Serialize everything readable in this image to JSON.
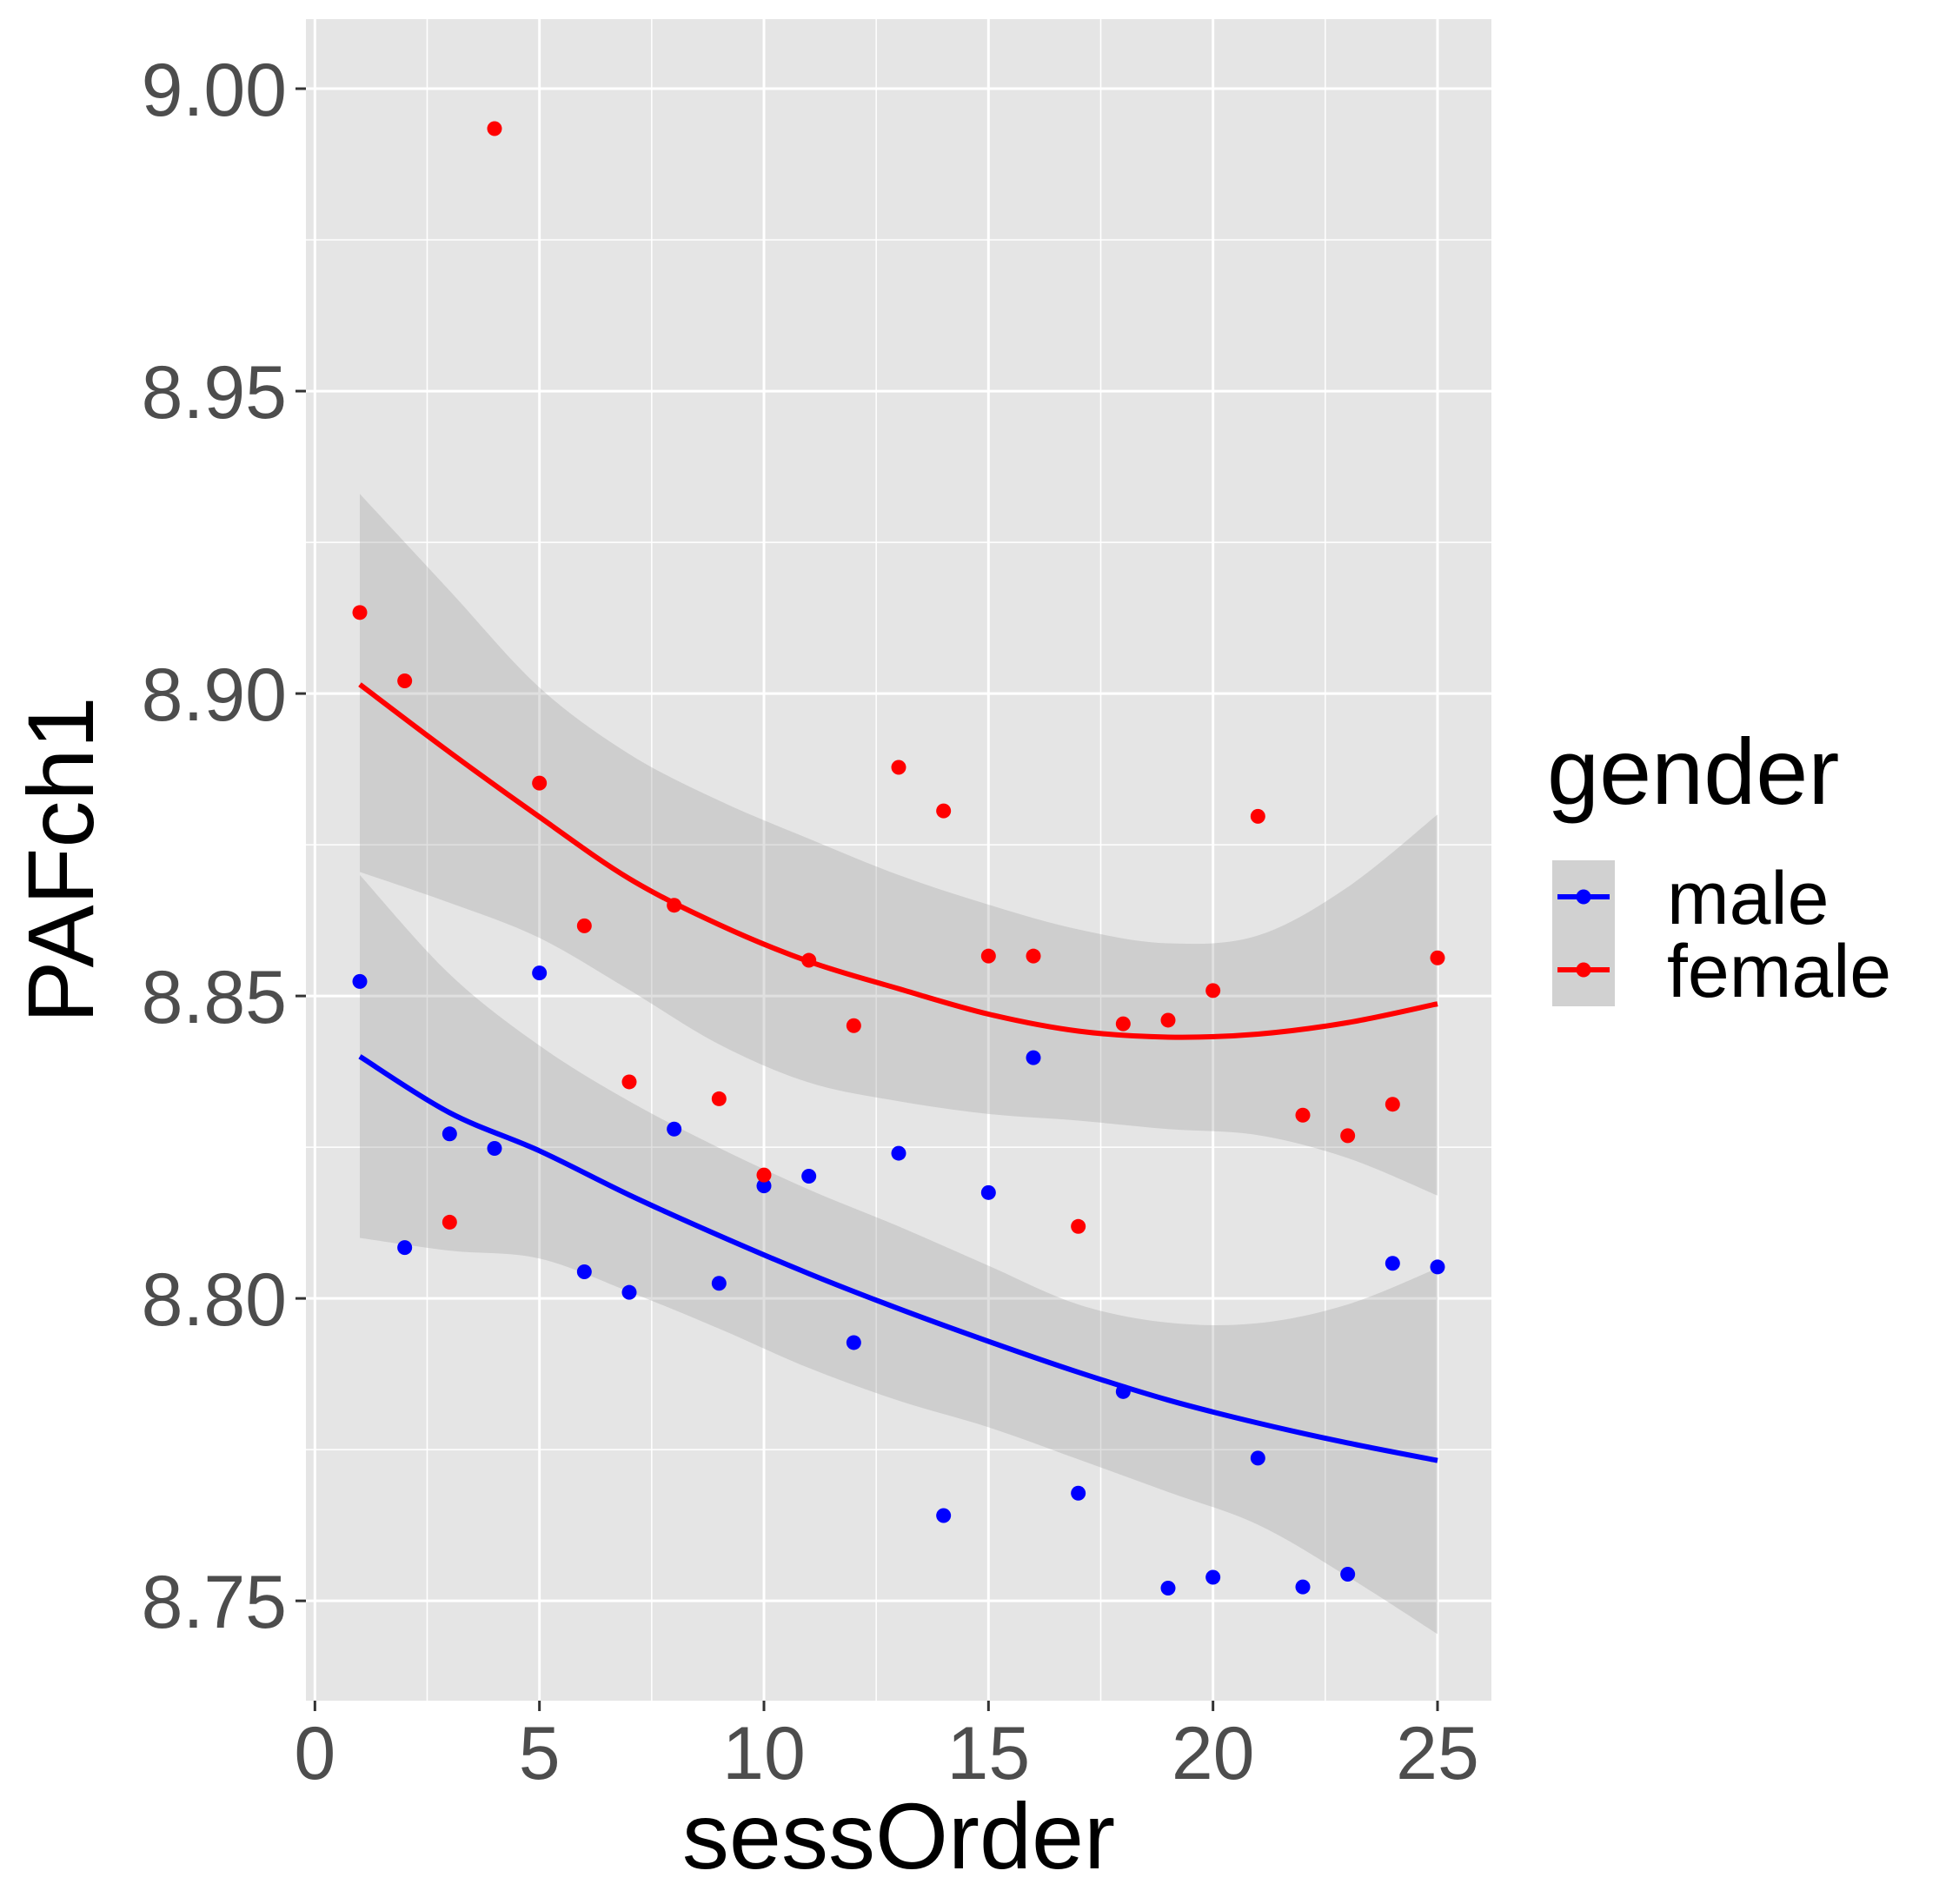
{
  "chart_data": {
    "type": "scatter",
    "title": "",
    "xlabel": "sessOrder",
    "ylabel": "PAFch1",
    "xlim": [
      -0.2,
      26.2
    ],
    "ylim": [
      8.7335,
      9.0115
    ],
    "x_ticks": [
      0,
      5,
      10,
      15,
      20,
      25
    ],
    "x_tick_labels": [
      "0",
      "5",
      "10",
      "15",
      "20",
      "25"
    ],
    "y_ticks": [
      8.75,
      8.8,
      8.85,
      8.9,
      8.95,
      9.0
    ],
    "y_tick_labels": [
      "8.75",
      "8.80",
      "8.85",
      "8.90",
      "8.95",
      "9.00"
    ],
    "grid": true,
    "background": "#e5e5e5",
    "legend": {
      "title": "gender",
      "placement": "right",
      "entries": [
        "male",
        "female"
      ]
    },
    "series": [
      {
        "name": "male",
        "color": "#0000ff",
        "points": [
          [
            1,
            8.8524
          ],
          [
            2,
            8.8084
          ],
          [
            3,
            8.8272
          ],
          [
            4,
            8.8248
          ],
          [
            5,
            8.8538
          ],
          [
            6,
            8.8044
          ],
          [
            7,
            8.801
          ],
          [
            8,
            8.828
          ],
          [
            9,
            8.8025
          ],
          [
            10,
            8.8186
          ],
          [
            11,
            8.8202
          ],
          [
            12,
            8.7927
          ],
          [
            13,
            8.824
          ],
          [
            14,
            8.7641
          ],
          [
            15,
            8.8175
          ],
          [
            16,
            8.8398
          ],
          [
            17,
            8.7678
          ],
          [
            18,
            8.7846
          ],
          [
            19,
            8.7521
          ],
          [
            20,
            8.7539
          ],
          [
            21,
            8.7736
          ],
          [
            22,
            8.7523
          ],
          [
            23,
            8.7544
          ],
          [
            24,
            8.8058
          ],
          [
            25,
            8.8052
          ]
        ],
        "fit": [
          [
            1,
            8.84
          ],
          [
            3,
            8.8307
          ],
          [
            5,
            8.8244
          ],
          [
            7,
            8.8171
          ],
          [
            9,
            8.8104
          ],
          [
            11,
            8.8041
          ],
          [
            13,
            8.7983
          ],
          [
            15,
            8.7929
          ],
          [
            17,
            8.7878
          ],
          [
            19,
            8.7832
          ],
          [
            21,
            8.7794
          ],
          [
            23,
            8.7761
          ],
          [
            25,
            8.7732
          ]
        ],
        "ci_upper": [
          [
            1,
            8.87
          ],
          [
            3,
            8.8536
          ],
          [
            5,
            8.8418
          ],
          [
            7,
            8.8326
          ],
          [
            9,
            8.8249
          ],
          [
            11,
            8.818
          ],
          [
            13,
            8.8119
          ],
          [
            15,
            8.8054
          ],
          [
            17,
            8.799
          ],
          [
            19,
            8.796
          ],
          [
            21,
            8.7959
          ],
          [
            23,
            8.799
          ],
          [
            25,
            8.805
          ]
        ],
        "ci_lower": [
          [
            1,
            8.81
          ],
          [
            3,
            8.8079
          ],
          [
            5,
            8.8066
          ],
          [
            7,
            8.8011
          ],
          [
            9,
            8.795
          ],
          [
            11,
            8.7885
          ],
          [
            13,
            8.7831
          ],
          [
            15,
            8.7787
          ],
          [
            17,
            8.7734
          ],
          [
            19,
            8.768
          ],
          [
            21,
            8.7626
          ],
          [
            23,
            8.754
          ],
          [
            25,
            8.7445
          ]
        ]
      },
      {
        "name": "female",
        "color": "#ff0000",
        "points": [
          [
            1,
            8.9134
          ],
          [
            2,
            8.9021
          ],
          [
            3,
            8.8126
          ],
          [
            4,
            8.9934
          ],
          [
            5,
            8.8852
          ],
          [
            6,
            8.8616
          ],
          [
            7,
            8.8358
          ],
          [
            8,
            8.865
          ],
          [
            9,
            8.833
          ],
          [
            10,
            8.8204
          ],
          [
            11,
            8.8559
          ],
          [
            12,
            8.8451
          ],
          [
            13,
            8.8878
          ],
          [
            14,
            8.8806
          ],
          [
            15,
            8.8566
          ],
          [
            16,
            8.8566
          ],
          [
            17,
            8.8119
          ],
          [
            18,
            8.8454
          ],
          [
            19,
            8.846
          ],
          [
            20,
            8.8509
          ],
          [
            21,
            8.8797
          ],
          [
            22,
            8.8303
          ],
          [
            23,
            8.8269
          ],
          [
            24,
            8.8321
          ],
          [
            25,
            8.8563
          ]
        ],
        "fit": [
          [
            1,
            8.9015
          ],
          [
            3,
            8.8903
          ],
          [
            5,
            8.8796
          ],
          [
            7,
            8.8694
          ],
          [
            9,
            8.8618
          ],
          [
            11,
            8.8557
          ],
          [
            13,
            8.8512
          ],
          [
            15,
            8.847
          ],
          [
            17,
            8.8442
          ],
          [
            19,
            8.8432
          ],
          [
            21,
            8.8437
          ],
          [
            23,
            8.8456
          ],
          [
            25,
            8.8487
          ]
        ],
        "ci_upper": [
          [
            1,
            8.933
          ],
          [
            3,
            8.917
          ],
          [
            5,
            8.901
          ],
          [
            7,
            8.89
          ],
          [
            9,
            8.8823
          ],
          [
            11,
            8.876
          ],
          [
            13,
            8.87
          ],
          [
            15,
            8.8651
          ],
          [
            17,
            8.861
          ],
          [
            19,
            8.8587
          ],
          [
            21,
            8.86
          ],
          [
            23,
            8.868
          ],
          [
            25,
            8.88
          ]
        ],
        "ci_lower": [
          [
            1,
            8.8705
          ],
          [
            3,
            8.8654
          ],
          [
            5,
            8.8596
          ],
          [
            7,
            8.851
          ],
          [
            9,
            8.842
          ],
          [
            11,
            8.8357
          ],
          [
            13,
            8.8326
          ],
          [
            15,
            8.8305
          ],
          [
            17,
            8.8294
          ],
          [
            19,
            8.828
          ],
          [
            21,
            8.827
          ],
          [
            23,
            8.8232
          ],
          [
            25,
            8.817
          ]
        ]
      }
    ]
  }
}
